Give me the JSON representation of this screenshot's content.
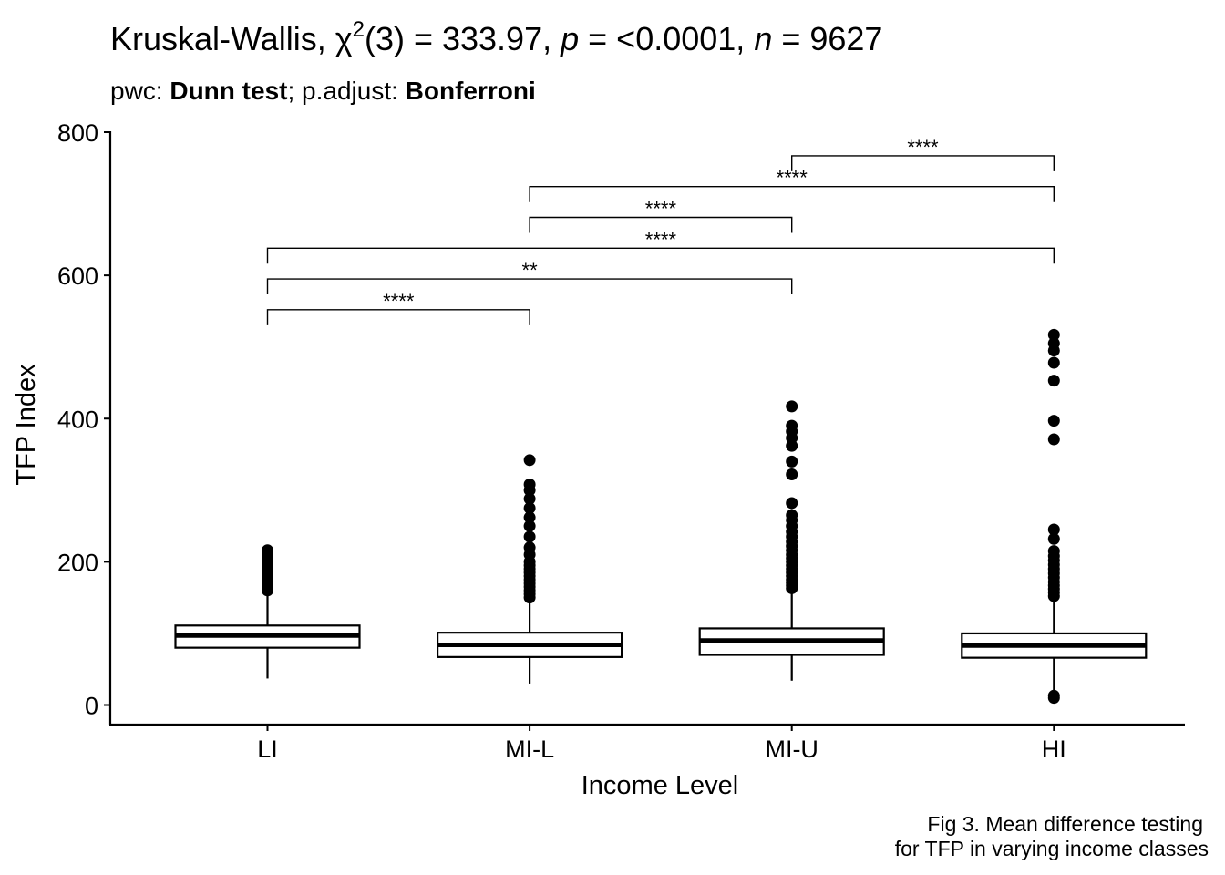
{
  "chart_data": {
    "type": "box",
    "title": {
      "test_name": "Kruskal-Wallis, ",
      "chi_symbol": "χ",
      "chi_sup": "2",
      "df_part": "(3) = 333.97, ",
      "p_symbol": "p",
      "p_part": " = <0.0001, ",
      "n_symbol": "n",
      "n_part": " = 9627"
    },
    "subtitle": {
      "pwc_label": "pwc: ",
      "pwc_value": "Dunn test",
      "sep": "; p.adjust: ",
      "adjust_value": "Bonferroni"
    },
    "xlabel": "Income Level",
    "ylabel": "TFP Index",
    "ylim": [
      -28,
      800
    ],
    "y_ticks": [
      0,
      200,
      400,
      600,
      800
    ],
    "categories": [
      "LI",
      "MI-L",
      "MI-U",
      "HI"
    ],
    "boxes": [
      {
        "category": "LI",
        "whisker_low": 37,
        "q1": 80,
        "median": 97,
        "q3": 111,
        "whisker_high": 158,
        "outliers": [
          160,
          163,
          166,
          170,
          173,
          176,
          180,
          184,
          188,
          192,
          196,
          200,
          204,
          208,
          212,
          216
        ]
      },
      {
        "category": "MI-L",
        "whisker_low": 30,
        "q1": 67,
        "median": 84,
        "q3": 101,
        "whisker_high": 148,
        "outliers": [
          150,
          155,
          160,
          165,
          170,
          175,
          180,
          185,
          190,
          195,
          200,
          210,
          220,
          235,
          250,
          262,
          275,
          288,
          300,
          308,
          342
        ]
      },
      {
        "category": "MI-U",
        "whisker_low": 34,
        "q1": 70,
        "median": 90,
        "q3": 107,
        "whisker_high": 160,
        "outliers": [
          163,
          167,
          171,
          175,
          180,
          185,
          190,
          195,
          200,
          205,
          210,
          216,
          222,
          228,
          235,
          242,
          250,
          258,
          265,
          282,
          322,
          340,
          362,
          373,
          382,
          390,
          417
        ]
      },
      {
        "category": "HI",
        "whisker_low": 20,
        "q1": 66,
        "median": 83,
        "q3": 100,
        "whisker_high": 149,
        "outliers": [
          10,
          13,
          152,
          157,
          162,
          167,
          172,
          178,
          184,
          190,
          196,
          202,
          208,
          215,
          232,
          245,
          371,
          397,
          453,
          478,
          495,
          505,
          517
        ]
      }
    ],
    "comparisons": [
      {
        "group1": "LI",
        "group2": "MI-L",
        "y": 552,
        "label": "****"
      },
      {
        "group1": "LI",
        "group2": "MI-U",
        "y": 595,
        "label": "**"
      },
      {
        "group1": "LI",
        "group2": "HI",
        "y": 638,
        "label": "****"
      },
      {
        "group1": "MI-L",
        "group2": "MI-U",
        "y": 681,
        "label": "****"
      },
      {
        "group1": "MI-L",
        "group2": "HI",
        "y": 724,
        "label": "****"
      },
      {
        "group1": "MI-U",
        "group2": "HI",
        "y": 767,
        "label": "****"
      }
    ],
    "caption": [
      "Fig 3. Mean difference testing",
      "for TFP in varying income classes"
    ],
    "grid": false,
    "legend": "none"
  }
}
